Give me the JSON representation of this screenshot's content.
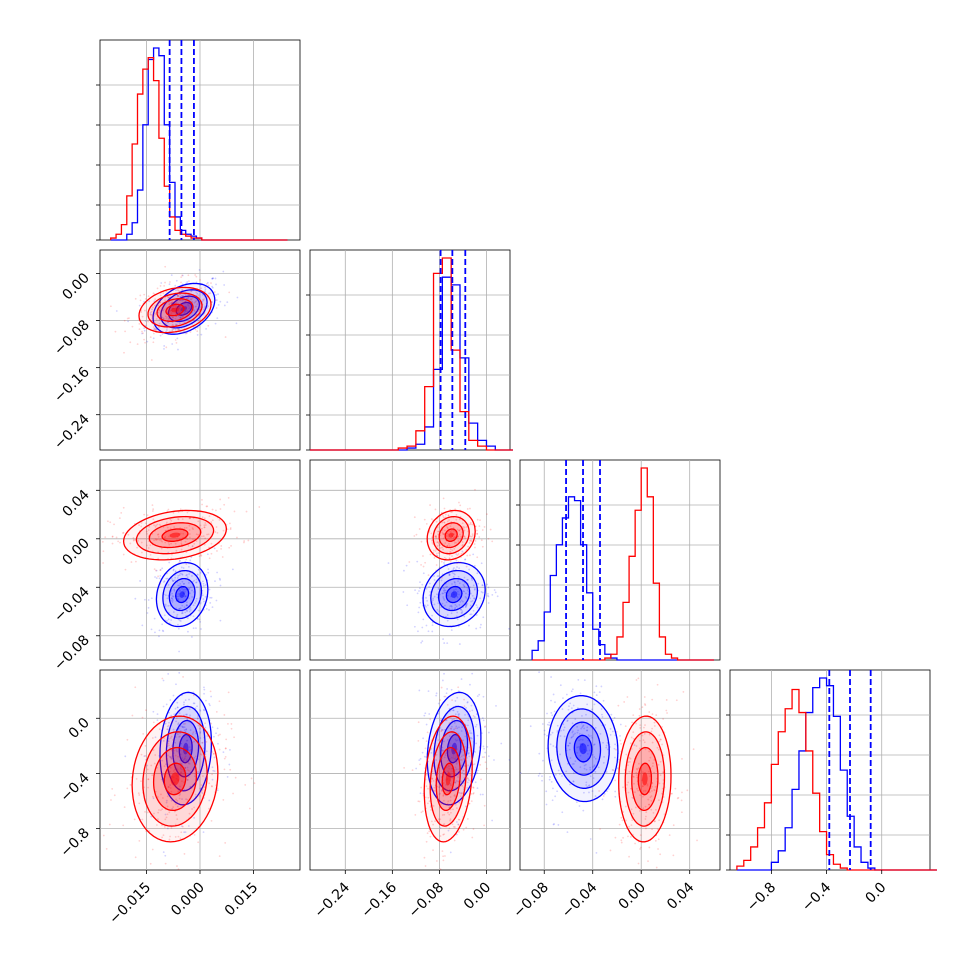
{
  "chart_data": {
    "type": "corner",
    "title": "",
    "parameters": 4,
    "series": [
      {
        "name": "",
        "color": "#0000ff"
      },
      {
        "name": "",
        "color": "#ff0000"
      }
    ],
    "axes": [
      {
        "range": [
          -0.028,
          0.028
        ],
        "ticks": [
          -0.015,
          0.0,
          0.015
        ],
        "tick_labels": [
          "−0.015",
          "0.000",
          "0.015"
        ]
      },
      {
        "range": [
          -0.3,
          0.04
        ],
        "ticks": [
          -0.24,
          -0.16,
          -0.08,
          0.0
        ],
        "tick_labels": [
          "−0.24",
          "−0.16",
          "−0.08",
          "0.00"
        ]
      },
      {
        "range": [
          -0.1,
          0.065
        ],
        "ticks": [
          -0.08,
          -0.04,
          0.0,
          0.04
        ],
        "tick_labels": [
          "−0.08",
          "−0.04",
          "0.00",
          "0.04"
        ]
      },
      {
        "range": [
          -1.1,
          0.35
        ],
        "ticks": [
          -0.8,
          -0.4,
          0.0
        ],
        "tick_labels": [
          "−0.8",
          "−0.4",
          "0.0"
        ]
      }
    ],
    "grid": true,
    "histograms": [
      {
        "param": 0,
        "series": [
          {
            "color": "#0000ff",
            "start": -0.025,
            "width": 0.0015,
            "values": [
              0,
              0,
              0,
              3,
              9,
              26,
              60,
              94,
              100,
              96,
              60,
              30,
              12,
              5,
              3,
              2,
              1,
              0,
              0,
              0,
              0,
              0,
              0,
              0,
              0,
              0,
              0,
              0,
              0,
              0,
              0,
              0,
              0
            ]
          },
          {
            "color": "#ff0000",
            "start": -0.025,
            "width": 0.0015,
            "values": [
              1,
              3,
              8,
              23,
              50,
              76,
              89,
              95,
              83,
              53,
              28,
              12,
              5,
              3,
              2,
              1,
              1,
              0,
              0,
              0,
              0,
              0,
              0,
              0,
              0,
              0,
              0,
              0,
              0,
              0,
              0,
              0,
              0
            ]
          }
        ],
        "quantiles": [
          -0.0085,
          -0.0052,
          -0.0017
        ],
        "quantile_color": "#0000ff"
      },
      {
        "param": 1,
        "series": [
          {
            "color": "#0000ff",
            "start": -0.3,
            "width": 0.015,
            "values": [
              0,
              0,
              0,
              0,
              0,
              0,
              0,
              0,
              0,
              0,
              0,
              1,
              3,
              12,
              42,
              90,
              86,
              48,
              14,
              5,
              2,
              0,
              0
            ]
          },
          {
            "color": "#ff0000",
            "start": -0.3,
            "width": 0.015,
            "values": [
              0,
              0,
              0,
              0,
              0,
              0,
              0,
              0,
              0,
              0,
              1,
              2,
              10,
              33,
              92,
              100,
              52,
              20,
              5,
              2,
              0,
              0,
              0
            ]
          }
        ],
        "quantiles": [
          -0.078,
          -0.058,
          -0.036
        ],
        "quantile_color": "#0000ff"
      },
      {
        "param": 2,
        "series": [
          {
            "color": "#0000ff",
            "start": -0.09,
            "width": 0.005,
            "values": [
              5,
              10,
              25,
              44,
              60,
              74,
              85,
              83,
              60,
              35,
              16,
              8,
              3,
              1,
              0,
              0,
              0,
              0,
              0,
              0,
              0,
              0,
              0,
              0,
              0,
              0,
              0,
              0,
              0,
              0
            ]
          },
          {
            "color": "#ff0000",
            "start": -0.09,
            "width": 0.005,
            "values": [
              0,
              0,
              0,
              0,
              0,
              0,
              0,
              0,
              0,
              0,
              0,
              0,
              1,
              3,
              12,
              30,
              54,
              78,
              100,
              85,
              40,
              12,
              3,
              1,
              0,
              0,
              0,
              0,
              0,
              0
            ]
          }
        ],
        "quantiles": [
          -0.062,
          -0.048,
          -0.034
        ],
        "quantile_color": "#0000ff"
      },
      {
        "param": 3,
        "series": [
          {
            "color": "#0000ff",
            "start": -1.05,
            "width": 0.05,
            "values": [
              0,
              0,
              0,
              0,
              0,
              4,
              10,
              22,
              42,
              62,
              82,
              95,
              100,
              96,
              80,
              52,
              28,
              12,
              4,
              1,
              0,
              0,
              0,
              0,
              0,
              0,
              0,
              0,
              0
            ]
          },
          {
            "color": "#ff0000",
            "start": -1.05,
            "width": 0.05,
            "values": [
              2,
              5,
              12,
              22,
              35,
              55,
              72,
              84,
              94,
              82,
              62,
              40,
              20,
              8,
              3,
              1,
              0,
              0,
              0,
              0,
              0,
              0,
              0,
              0,
              0,
              0,
              0,
              0,
              0
            ]
          }
        ],
        "quantiles": [
          -0.38,
          -0.23,
          -0.08
        ],
        "quantile_color": "#0000ff"
      }
    ],
    "joint": [
      {
        "x": 0,
        "y": 1,
        "series": [
          {
            "color": "#0000ff",
            "cx": -0.0045,
            "cy": -0.06,
            "sx": 0.0036,
            "sy": 0.018,
            "rho": 0.35
          },
          {
            "color": "#ff0000",
            "cx": -0.007,
            "cy": -0.062,
            "sx": 0.0042,
            "sy": 0.016,
            "rho": 0.25
          }
        ]
      },
      {
        "x": 0,
        "y": 2,
        "series": [
          {
            "color": "#0000ff",
            "cx": -0.005,
            "cy": -0.046,
            "sx": 0.003,
            "sy": 0.011,
            "rho": 0.15
          },
          {
            "color": "#ff0000",
            "cx": -0.007,
            "cy": 0.003,
            "sx": 0.006,
            "sy": 0.0085,
            "rho": 0.25
          }
        ]
      },
      {
        "x": 0,
        "y": 3,
        "series": [
          {
            "color": "#0000ff",
            "cx": -0.004,
            "cy": -0.22,
            "sx": 0.003,
            "sy": 0.17,
            "rho": 0.1
          },
          {
            "color": "#ff0000",
            "cx": -0.007,
            "cy": -0.44,
            "sx": 0.005,
            "sy": 0.19,
            "rho": 0.1
          }
        ]
      },
      {
        "x": 1,
        "y": 2,
        "series": [
          {
            "color": "#0000ff",
            "cx": -0.055,
            "cy": -0.046,
            "sx": 0.022,
            "sy": 0.011,
            "rho": 0.15
          },
          {
            "color": "#ff0000",
            "cx": -0.06,
            "cy": 0.003,
            "sx": 0.017,
            "sy": 0.0085,
            "rho": 0.15
          }
        ]
      },
      {
        "x": 1,
        "y": 3,
        "series": [
          {
            "color": "#0000ff",
            "cx": -0.055,
            "cy": -0.22,
            "sx": 0.019,
            "sy": 0.17,
            "rho": 0.2
          },
          {
            "color": "#ff0000",
            "cx": -0.065,
            "cy": -0.44,
            "sx": 0.017,
            "sy": 0.19,
            "rho": 0.2
          }
        ]
      },
      {
        "x": 2,
        "y": 3,
        "series": [
          {
            "color": "#0000ff",
            "cx": -0.048,
            "cy": -0.22,
            "sx": 0.012,
            "sy": 0.16,
            "rho": -0.05
          },
          {
            "color": "#ff0000",
            "cx": 0.003,
            "cy": -0.44,
            "sx": 0.009,
            "sy": 0.19,
            "rho": 0.05
          }
        ]
      }
    ]
  }
}
